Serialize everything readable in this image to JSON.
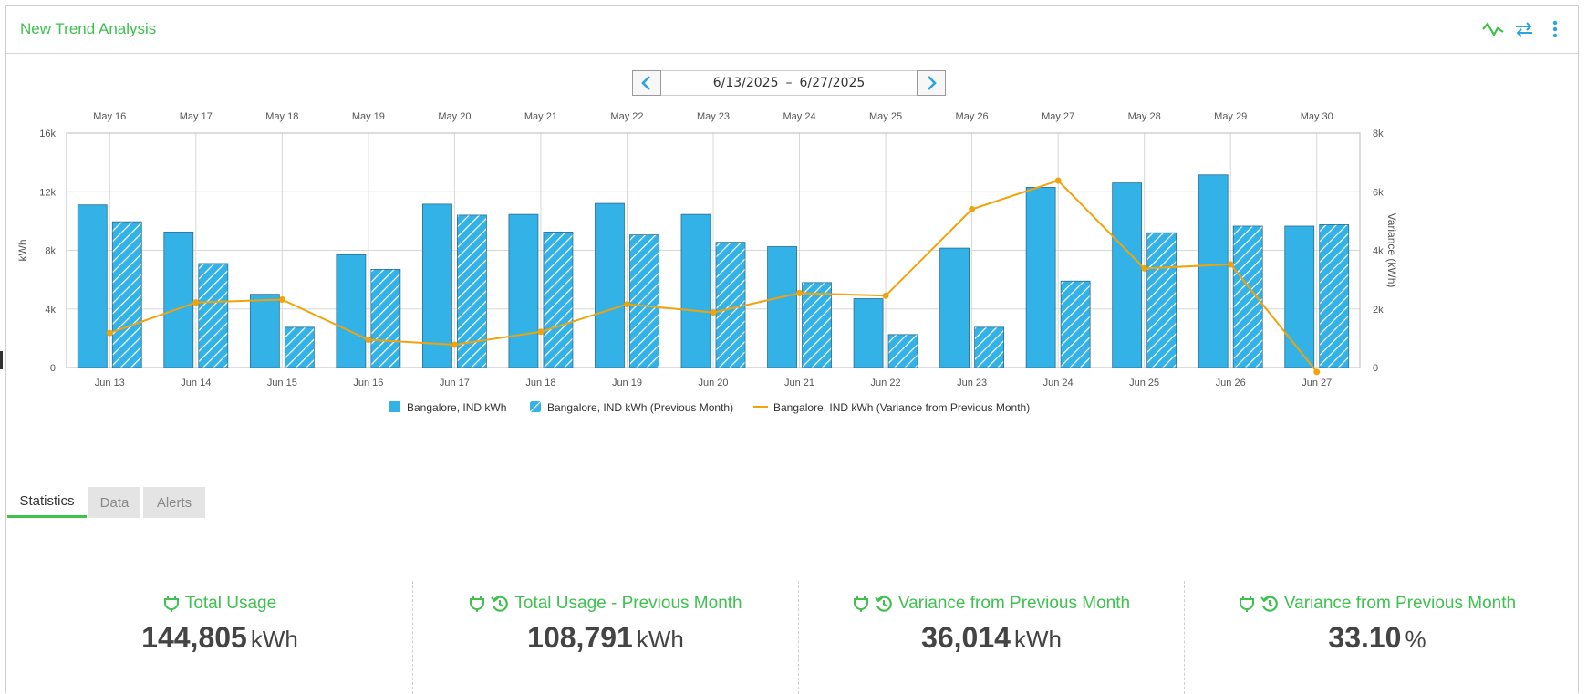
{
  "header": {
    "title": "New Trend Analysis"
  },
  "icons": {
    "trend": "trend-line-icon",
    "swap": "swap-arrows-icon",
    "more": "more-vertical-icon",
    "plug": "plug-icon",
    "history": "history-icon"
  },
  "date_range": {
    "start": "6/13/2025",
    "separator": "–",
    "end": "6/27/2025"
  },
  "colors": {
    "accent": "#3ec14f",
    "bar": "#33b2e8",
    "line": "#f0a30a",
    "nav": "#2aa4dd"
  },
  "chart_data": {
    "type": "bar",
    "categories": [
      "Jun 13",
      "Jun 14",
      "Jun 15",
      "Jun 16",
      "Jun 17",
      "Jun 18",
      "Jun 19",
      "Jun 20",
      "Jun 21",
      "Jun 22",
      "Jun 23",
      "Jun 24",
      "Jun 25",
      "Jun 26",
      "Jun 27"
    ],
    "top_categories": [
      "May 16",
      "May 17",
      "May 18",
      "May 19",
      "May 20",
      "May 21",
      "May 22",
      "May 23",
      "May 24",
      "May 25",
      "May 26",
      "May 27",
      "May 28",
      "May 29",
      "May 30"
    ],
    "series": [
      {
        "name": "Bangalore, IND kWh",
        "type": "bar",
        "values": [
          11100,
          9250,
          5000,
          7700,
          11150,
          10450,
          11200,
          10450,
          8250,
          4700,
          8150,
          12300,
          12600,
          13150,
          9650
        ]
      },
      {
        "name": "Bangalore, IND kWh (Previous Month)",
        "type": "bar-hatched",
        "values": [
          9950,
          7100,
          2750,
          6700,
          10400,
          9250,
          9050,
          8550,
          5800,
          2250,
          2750,
          5900,
          9200,
          9650,
          9750
        ]
      },
      {
        "name": "Bangalore, IND kWh (Variance from Previous Month)",
        "type": "line",
        "axis": "right",
        "values": [
          1180,
          2220,
          2320,
          950,
          780,
          1220,
          2160,
          1880,
          2540,
          2450,
          5400,
          6380,
          3380,
          3520,
          -150
        ]
      }
    ],
    "ylabel": "kWh",
    "ylabel_right": "Variance (kWh)",
    "ylim": [
      0,
      16000
    ],
    "ylim_right": [
      0,
      8000
    ],
    "yticks": [
      "0",
      "4k",
      "8k",
      "12k",
      "16k"
    ],
    "yticks_right": [
      "0",
      "2k",
      "4k",
      "6k",
      "8k"
    ],
    "grid": true,
    "legend": "bottom"
  },
  "tabs": [
    {
      "label": "Statistics"
    },
    {
      "label": "Data"
    },
    {
      "label": "Alerts"
    }
  ],
  "stats": [
    {
      "label": "Total Usage",
      "value": "144,805",
      "unit": "kWh"
    },
    {
      "label": "Total Usage - Previous Month",
      "value": "108,791",
      "unit": "kWh"
    },
    {
      "label": "Variance from Previous Month",
      "value": "36,014",
      "unit": "kWh"
    },
    {
      "label": "Variance from Previous Month",
      "value": "33.10",
      "unit": "%"
    }
  ]
}
